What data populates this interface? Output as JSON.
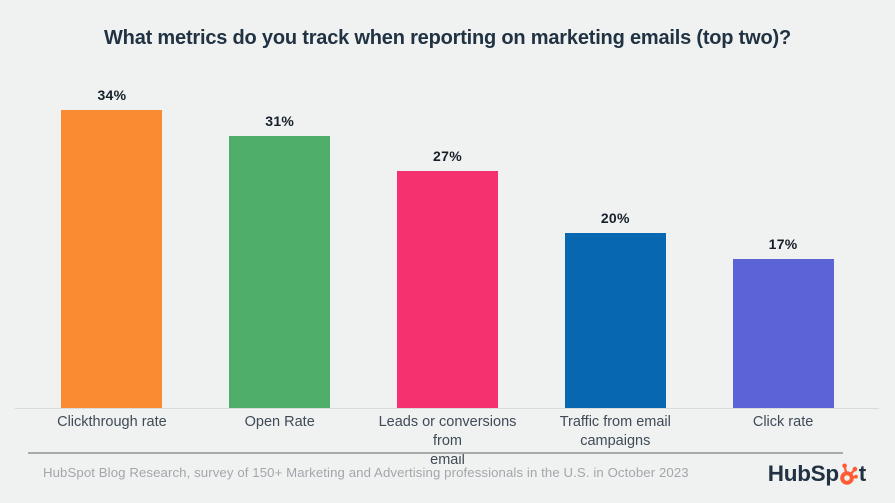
{
  "chart_data": {
    "type": "bar",
    "title": "What metrics do you track when reporting on marketing emails (top two)?",
    "categories": [
      "Clickthrough rate",
      "Open Rate",
      "Leads or conversions from email",
      "Traffic from email campaigns",
      "Click rate"
    ],
    "categories_display": [
      "Clickthrough rate",
      "Open Rate",
      "Leads or conversions from\nemail",
      "Traffic from email\ncampaigns",
      "Click rate"
    ],
    "values": [
      34,
      31,
      27,
      20,
      17
    ],
    "value_labels": [
      "34%",
      "31%",
      "27%",
      "20%",
      "17%"
    ],
    "bar_colors": [
      "#FB8B33",
      "#50AE6B",
      "#F5326F",
      "#0768B1",
      "#5B64D5"
    ],
    "unit": "%",
    "xlabel": "",
    "ylabel": "",
    "ylim": [
      0,
      36
    ],
    "grid": false,
    "legend": false,
    "value_label_position": "above-bar"
  },
  "footer": {
    "source_note": "HubSpot Blog Research, survey of 150+ Marketing and Advertising professionals in the U.S. in October 2023",
    "logo": {
      "name": "HubSpot",
      "text_before": "HubSp",
      "text_after": "t",
      "text_color": "#213343",
      "sprocket_color": "#FF5C35"
    }
  },
  "theme": {
    "background": "#F0F1F1",
    "title_color": "#213343",
    "value_label_color": "#16202A",
    "category_label_color": "#3F4B57",
    "axis_line_color": "#D9DADB",
    "divider_color": "#A8ABAD",
    "source_color": "#A3A7AB"
  }
}
